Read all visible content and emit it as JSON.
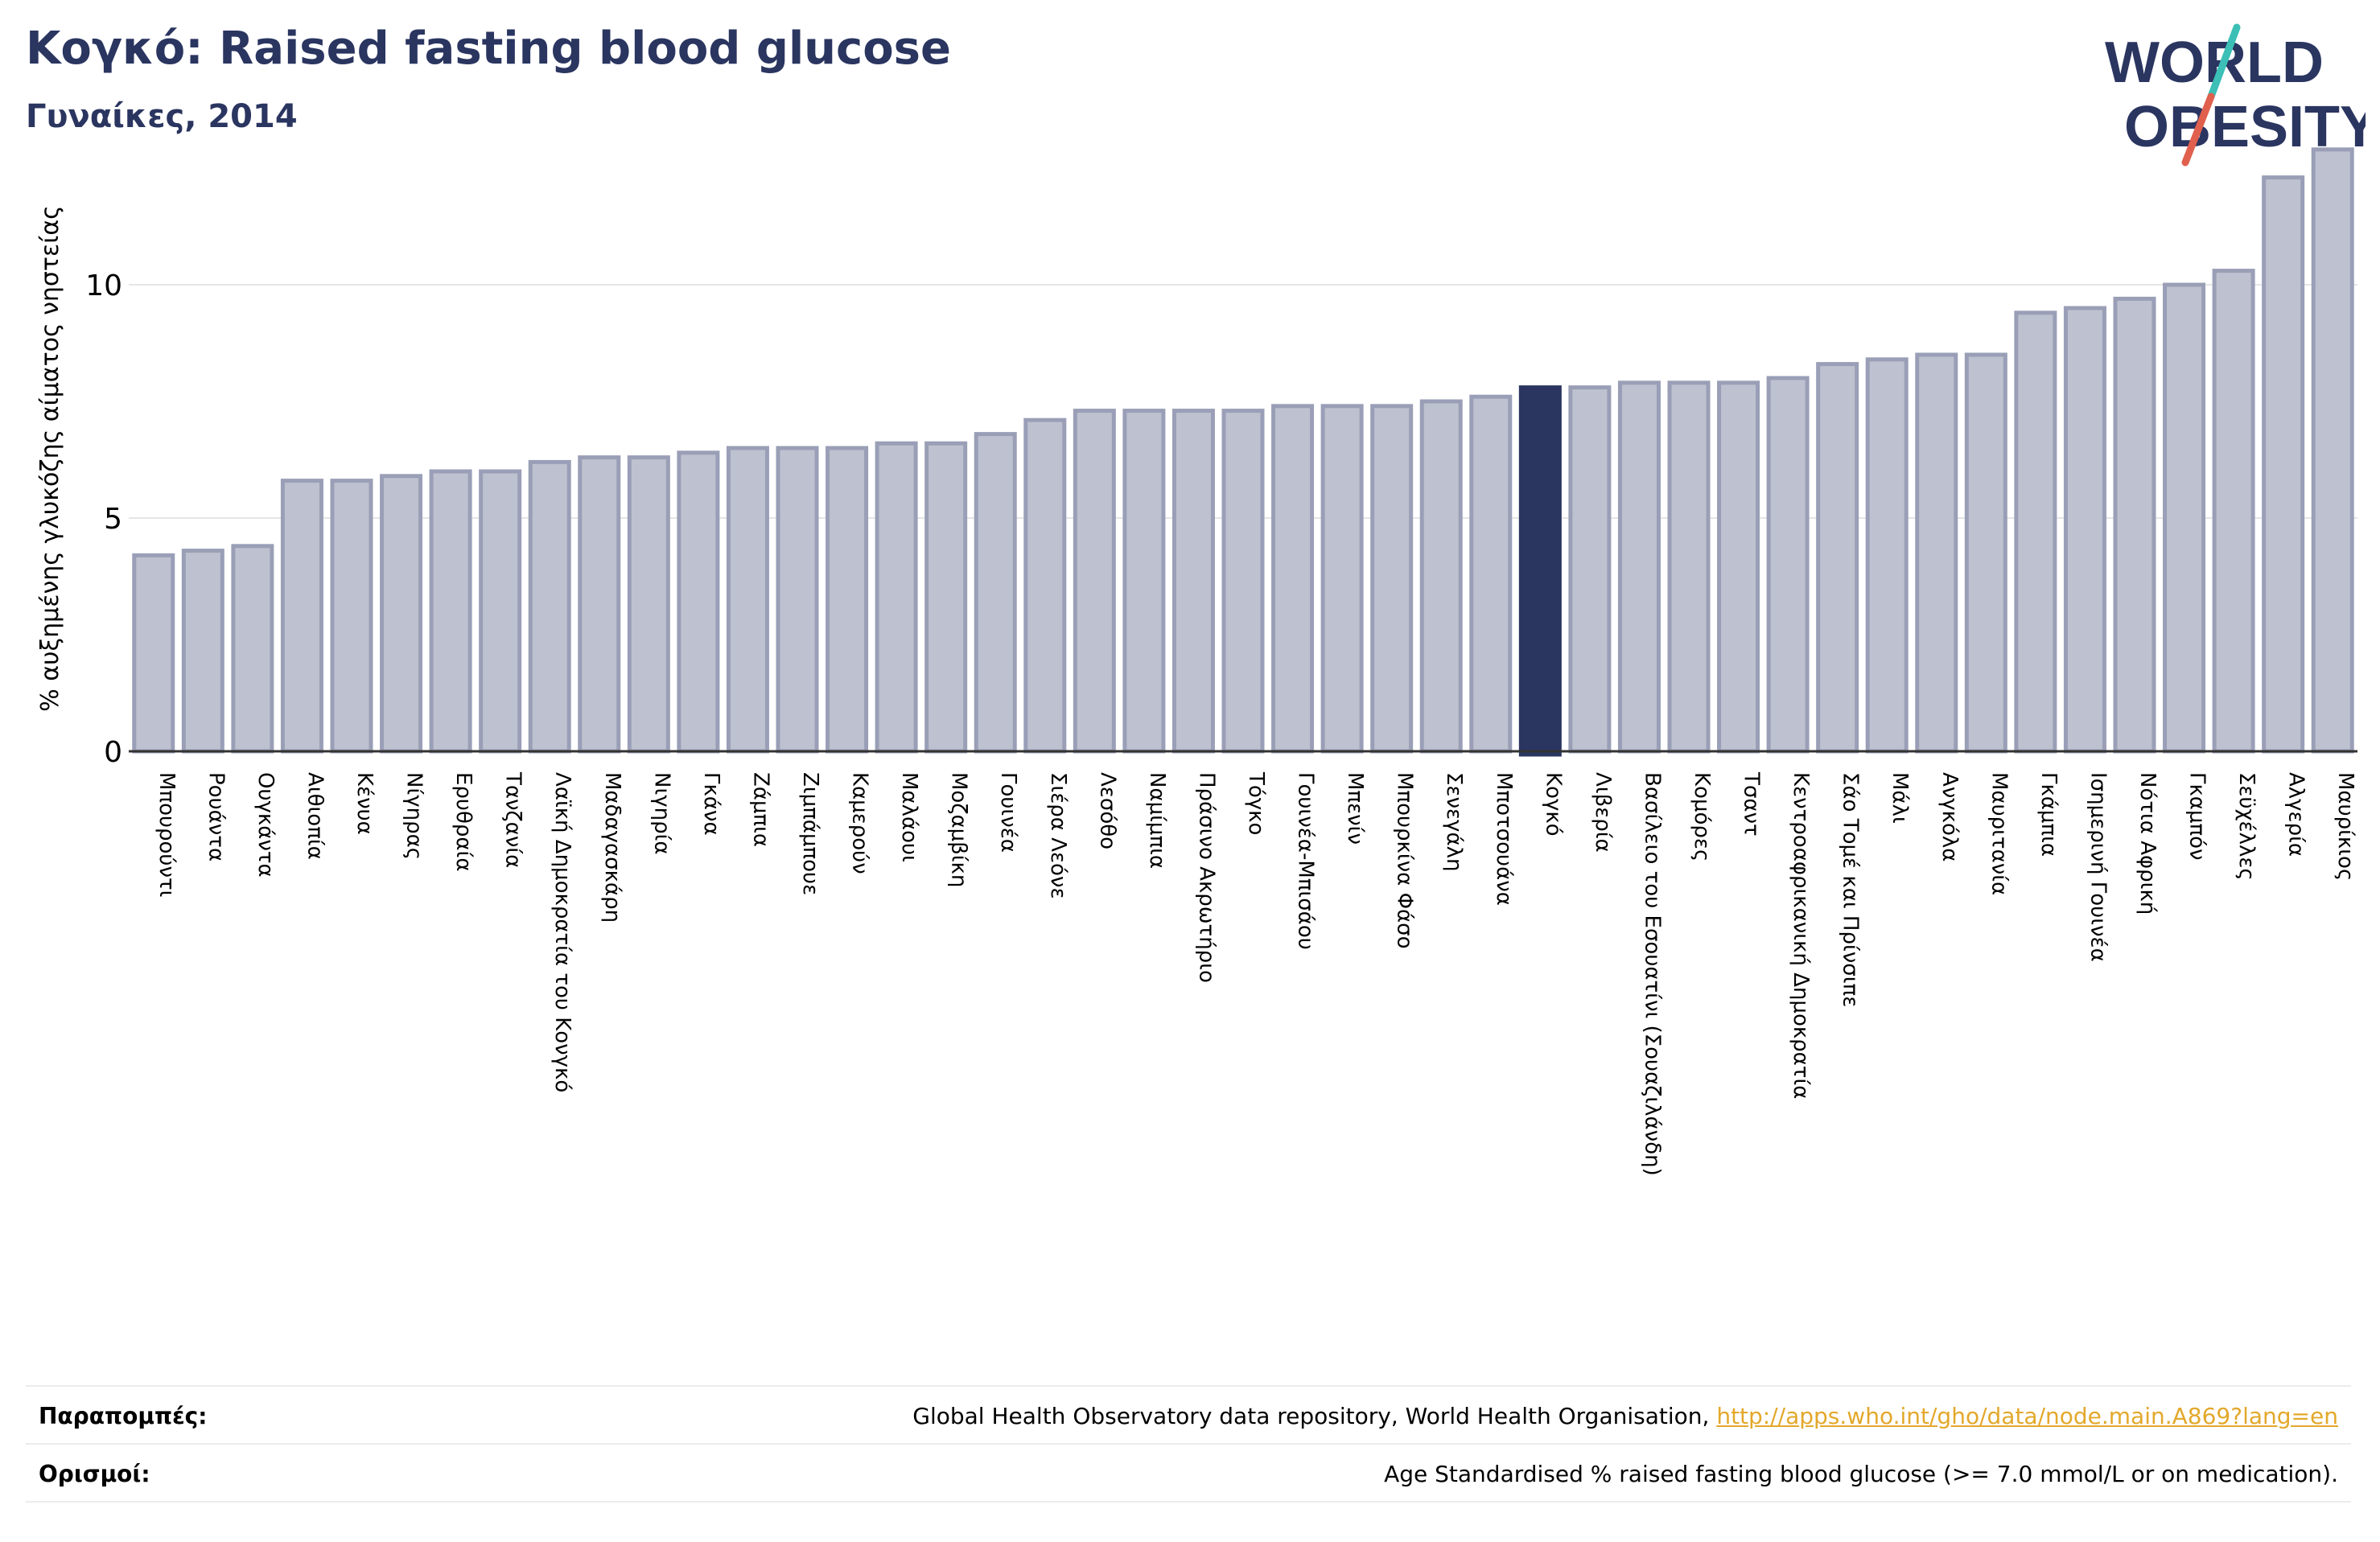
{
  "header": {
    "title": "Κογκό: Raised fasting blood glucose",
    "subtitle": "Γυναίκες, 2014"
  },
  "logo": {
    "line1": "WORLD",
    "line2": "OBESITY",
    "colors": {
      "text": "#2a3560",
      "accent_teal": "#3bbfb6",
      "accent_red": "#e0604d"
    }
  },
  "chart_data": {
    "type": "bar",
    "title": "",
    "xlabel": "",
    "ylabel": "% αυξημένης γλυκόζης αίματος νηστείας",
    "ylim": [
      0,
      13
    ],
    "yticks": [
      0,
      5,
      10
    ],
    "grid": true,
    "highlight": "Κογκό",
    "colors": {
      "bar": "#bec1cf",
      "bar_edge": "#9a9fb7",
      "highlight": "#2a3560"
    },
    "categories": [
      "Μπουρούντι",
      "Ρουάντα",
      "Ουγκάντα",
      "Αιθιοπία",
      "Κένυα",
      "Νίγηρας",
      "Ερυθραία",
      "Τανζανία",
      "Λαϊκή Δημοκρατία του Κονγκό",
      "Μαδαγασκάρη",
      "Νιγηρία",
      "Γκάνα",
      "Ζάμπια",
      "Ζιμπάμπουε",
      "Καμερούν",
      "Μαλάουι",
      "Μοζαμβίκη",
      "Γουινέα",
      "Σιέρα Λεόνε",
      "Λεσόθο",
      "Ναμίμπια",
      "Πράσινο Ακρωτήριο",
      "Τόγκο",
      "Γουινέα-Μπισάου",
      "Μπενίν",
      "Μπουρκίνα Φάσο",
      "Σενεγάλη",
      "Μποτσουάνα",
      "Κογκό",
      "Λιβερία",
      "Βασίλειο του Εσουατίνι (Σουαζιλάνδη)",
      "Κομόρες",
      "Τσαντ",
      "Κεντροαφρικανική Δημοκρατία",
      "Σάο Τομέ και Πρίνσιπε",
      "Μάλι",
      "Ανγκόλα",
      "Μαυριτανία",
      "Γκάμπια",
      "Ισημερινή Γουινέα",
      "Νότια Αφρική",
      "Γκαμπόν",
      "Σεϋχέλλες",
      "Αλγερία",
      "Μαυρίκιος"
    ],
    "values": [
      4.2,
      4.3,
      4.4,
      5.8,
      5.8,
      5.9,
      6.0,
      6.0,
      6.2,
      6.3,
      6.3,
      6.4,
      6.5,
      6.5,
      6.5,
      6.6,
      6.6,
      6.8,
      7.1,
      7.3,
      7.3,
      7.3,
      7.3,
      7.4,
      7.4,
      7.4,
      7.5,
      7.6,
      7.8,
      7.8,
      7.9,
      7.9,
      7.9,
      8.0,
      8.3,
      8.4,
      8.5,
      8.5,
      9.4,
      9.5,
      9.7,
      10.0,
      10.3,
      12.3,
      12.9
    ]
  },
  "footer": {
    "references_label": "Παραπομπές:",
    "references_text": "Global Health Observatory data repository, World Health Organisation, ",
    "references_link": "http://apps.who.int/gho/data/node.main.A869?lang=en",
    "definitions_label": "Ορισμοί:",
    "definitions_text": "Age Standardised % raised fasting blood glucose (>= 7.0 mmol/L or on medication)."
  }
}
